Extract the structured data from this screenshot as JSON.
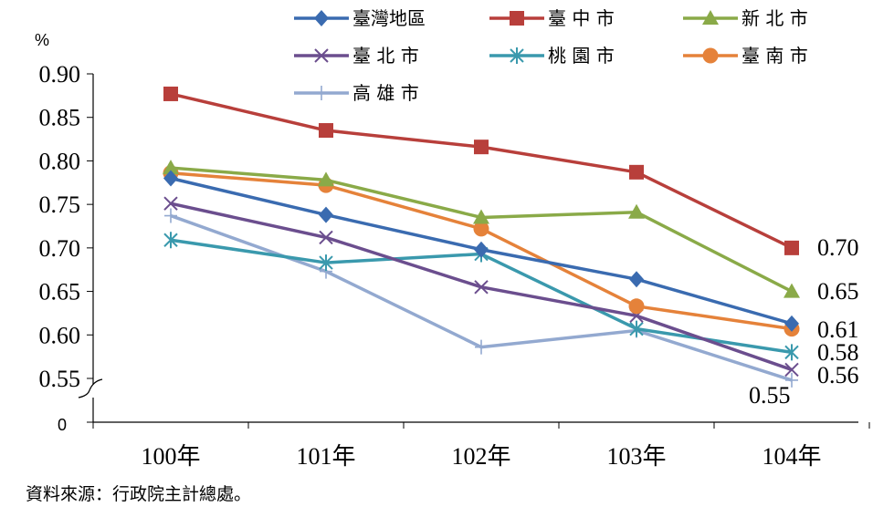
{
  "chart_data": {
    "type": "line",
    "categories": [
      "100年",
      "101年",
      "102年",
      "103年",
      "104年"
    ],
    "y_unit": "%",
    "ylim": [
      0.55,
      0.9
    ],
    "y_ticks": [
      "0.90",
      "0.85",
      "0.80",
      "0.75",
      "0.70",
      "0.65",
      "0.60",
      "0.55"
    ],
    "y_zero_label": "0",
    "axis_break": true,
    "grid": false,
    "legend_position": "top",
    "series": [
      {
        "name": "臺灣地區",
        "values": [
          0.78,
          0.738,
          0.698,
          0.664,
          0.613
        ],
        "color": "#3a6bb0",
        "marker": "diamond"
      },
      {
        "name": "臺 中 市",
        "values": [
          0.877,
          0.835,
          0.816,
          0.787,
          0.7
        ],
        "color": "#b83f3b",
        "marker": "square"
      },
      {
        "name": "新 北 市",
        "values": [
          0.792,
          0.778,
          0.735,
          0.741,
          0.65
        ],
        "color": "#8aaa48",
        "marker": "triangle"
      },
      {
        "name": "臺 北 市",
        "values": [
          0.751,
          0.712,
          0.655,
          0.622,
          0.56
        ],
        "color": "#6b4e8e",
        "marker": "x"
      },
      {
        "name": "桃 園 市",
        "values": [
          0.709,
          0.683,
          0.693,
          0.607,
          0.58
        ],
        "color": "#3a99ad",
        "marker": "asterisk"
      },
      {
        "name": "臺 南 市",
        "values": [
          0.786,
          0.772,
          0.722,
          0.633,
          0.607
        ],
        "color": "#e5823a",
        "marker": "circle"
      },
      {
        "name": "高 雄 市",
        "values": [
          0.737,
          0.673,
          0.586,
          0.605,
          0.548
        ],
        "color": "#93a9d0",
        "marker": "plus"
      }
    ],
    "end_labels": [
      {
        "text": "0.70",
        "value": 0.7
      },
      {
        "text": "0.65",
        "value": 0.65
      },
      {
        "text": "0.61",
        "value": 0.61
      },
      {
        "text": "0.58",
        "value": 0.58
      },
      {
        "text": "0.56",
        "value": 0.56
      },
      {
        "text": "0.55",
        "value": 0.55
      }
    ]
  },
  "source": "資料來源：行政院主計總處。"
}
